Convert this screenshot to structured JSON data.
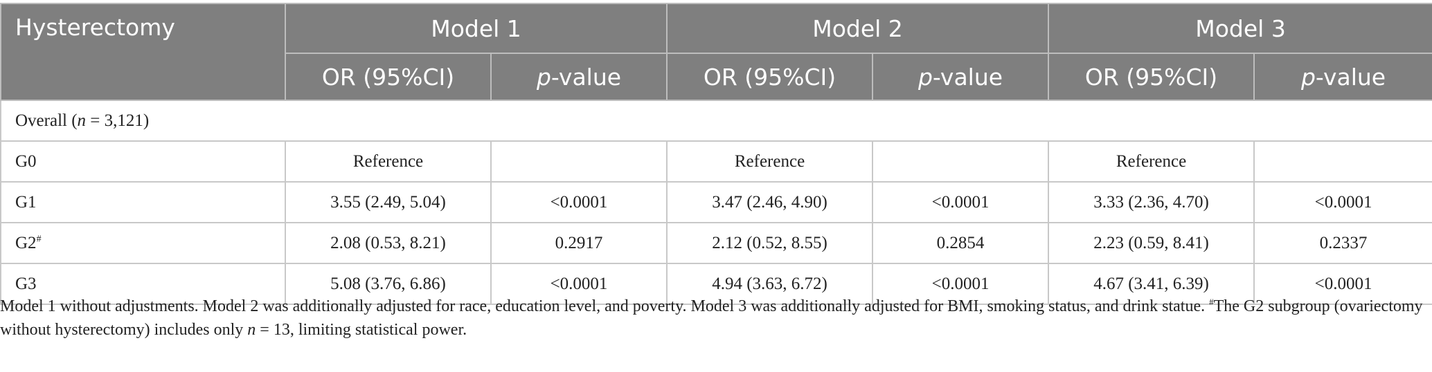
{
  "table": {
    "header": {
      "row_label": "Hysterectomy",
      "models": [
        "Model 1",
        "Model 2",
        "Model 3"
      ],
      "or_label": "OR (95%CI)",
      "p_label_italic": "p",
      "p_label_rest": "-value"
    },
    "section": {
      "label_prefix": "Overall (",
      "label_n": "n",
      "label_suffix": " = 3,121)"
    },
    "rows": [
      {
        "group": "G0",
        "sup": "",
        "m1_or": "Reference",
        "m1_p": "",
        "m2_or": "Reference",
        "m2_p": "",
        "m3_or": "Reference",
        "m3_p": ""
      },
      {
        "group": "G1",
        "sup": "",
        "m1_or": "3.55 (2.49, 5.04)",
        "m1_p": "<0.0001",
        "m2_or": "3.47 (2.46, 4.90)",
        "m2_p": "<0.0001",
        "m3_or": "3.33 (2.36, 4.70)",
        "m3_p": "<0.0001"
      },
      {
        "group": "G2",
        "sup": "#",
        "m1_or": "2.08 (0.53, 8.21)",
        "m1_p": "0.2917",
        "m2_or": "2.12 (0.52, 8.55)",
        "m2_p": "0.2854",
        "m3_or": "2.23 (0.59, 8.41)",
        "m3_p": "0.2337"
      },
      {
        "group": "G3",
        "sup": "",
        "m1_or": "5.08 (3.76, 6.86)",
        "m1_p": "<0.0001",
        "m2_or": "4.94 (3.63, 6.72)",
        "m2_p": "<0.0001",
        "m3_or": "4.67 (3.41, 6.39)",
        "m3_p": "<0.0001"
      }
    ]
  },
  "footnote": {
    "part1": "Model 1 without adjustments. Model 2 was additionally adjusted for race, education level, and poverty. Model 3 was additionally adjusted for BMI, smoking status, and drink statue. ",
    "mark": "#",
    "part2": "The G2 subgroup (ovariectomy without hysterectomy) includes only ",
    "n_italic": "n",
    "part3": " = 13, limiting statistical power."
  },
  "colors": {
    "header_bg": "#7f7f7f",
    "header_text": "#ffffff",
    "grid": "#c8c8c8"
  }
}
